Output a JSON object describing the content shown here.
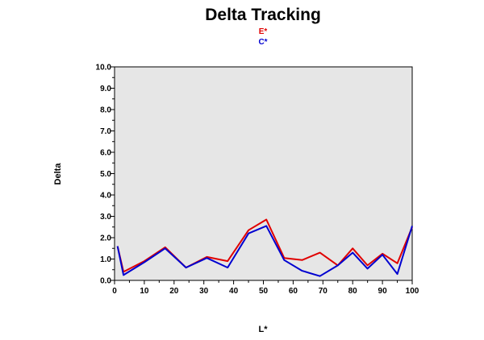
{
  "chart_data": {
    "type": "line",
    "title": "Delta Tracking",
    "xlabel": "L*",
    "ylabel": "Delta",
    "xlim": [
      0,
      100
    ],
    "ylim": [
      0,
      10
    ],
    "x_ticks": [
      "0",
      "10",
      "20",
      "30",
      "40",
      "50",
      "60",
      "70",
      "80",
      "90",
      "100"
    ],
    "y_ticks": [
      "0.0",
      "1.0",
      "2.0",
      "3.0",
      "4.0",
      "5.0",
      "6.0",
      "7.0",
      "8.0",
      "9.0",
      "10.0"
    ],
    "legend_position": "top-center",
    "plot_background": "#e6e6e6",
    "x": [
      1,
      3,
      10,
      17,
      24,
      31,
      38,
      45,
      51,
      57,
      63,
      69,
      75,
      80,
      85,
      90,
      95,
      100
    ],
    "series": [
      {
        "name": "E*",
        "color": "#e00000",
        "values": [
          1.6,
          0.4,
          0.9,
          1.55,
          0.6,
          1.1,
          0.9,
          2.35,
          2.85,
          1.05,
          0.95,
          1.3,
          0.7,
          1.5,
          0.7,
          1.25,
          0.8,
          2.5
        ]
      },
      {
        "name": "C*",
        "color": "#0000d0",
        "values": [
          1.6,
          0.25,
          0.85,
          1.5,
          0.6,
          1.05,
          0.6,
          2.2,
          2.55,
          0.95,
          0.45,
          0.2,
          0.7,
          1.3,
          0.55,
          1.2,
          0.3,
          2.55
        ]
      }
    ]
  }
}
